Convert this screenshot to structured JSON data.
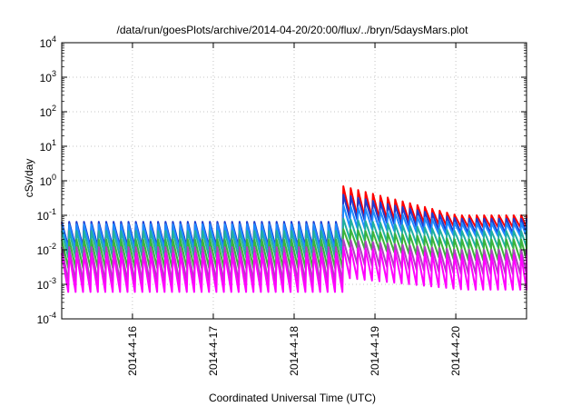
{
  "chart_data": {
    "type": "line",
    "title": "/data/run/goesPlots/archive/2014-04-20/20:00/flux/../bryn/5daysMars.plot",
    "xlabel": "Coordinated Universal Time (UTC)",
    "ylabel": "cSv/day",
    "x_range": [
      "2014-04-15 03:00",
      "2014-04-20 21:00"
    ],
    "x_ticks": [
      "2014-4-16",
      "2014-4-17",
      "2014-4-18",
      "2014-4-19",
      "2014-4-20"
    ],
    "y_scale": "log",
    "ylim": [
      0.0001,
      10000
    ],
    "y_ticks": [
      {
        "base": "10",
        "exp": "4"
      },
      {
        "base": "10",
        "exp": "3"
      },
      {
        "base": "10",
        "exp": "2"
      },
      {
        "base": "10",
        "exp": "1"
      },
      {
        "base": "10",
        "exp": "0"
      },
      {
        "base": "10",
        "exp": "-1"
      },
      {
        "base": "10",
        "exp": "-2"
      },
      {
        "base": "10",
        "exp": "-3"
      },
      {
        "base": "10",
        "exp": "-4"
      }
    ],
    "grid": true,
    "sawtooth_period_hours": 2.2,
    "event_start": "2014-04-18 14:30",
    "series": [
      {
        "color": "#ff0000",
        "peak_before": 0.06,
        "trough_before": 0.012,
        "peak_event": 0.7,
        "trough_event": 0.1,
        "peak_end": 0.1,
        "trough_end": 0.045
      },
      {
        "color": "#1e3ccf",
        "peak_before": 0.065,
        "trough_before": 0.012,
        "peak_event": 0.4,
        "trough_event": 0.08,
        "peak_end": 0.08,
        "trough_end": 0.03
      },
      {
        "color": "#1e8cff",
        "peak_before": 0.055,
        "trough_before": 0.01,
        "peak_event": 0.2,
        "trough_event": 0.045,
        "peak_end": 0.06,
        "trough_end": 0.025
      },
      {
        "color": "#20b0a0",
        "peak_before": 0.035,
        "trough_before": 0.006,
        "peak_event": 0.08,
        "trough_event": 0.02,
        "peak_end": 0.035,
        "trough_end": 0.012
      },
      {
        "color": "#3cb43c",
        "peak_before": 0.02,
        "trough_before": 0.003,
        "peak_event": 0.04,
        "trough_event": 0.012,
        "peak_end": 0.02,
        "trough_end": 0.005
      },
      {
        "color": "#b040c0",
        "peak_before": 0.012,
        "trough_before": 0.0012,
        "peak_event": 0.02,
        "trough_event": 0.004,
        "peak_end": 0.01,
        "trough_end": 0.002
      },
      {
        "color": "#ff00ff",
        "peak_before": 0.008,
        "trough_before": 0.0006,
        "peak_event": 0.012,
        "trough_event": 0.0015,
        "peak_end": 0.007,
        "trough_end": 0.0007
      }
    ]
  }
}
